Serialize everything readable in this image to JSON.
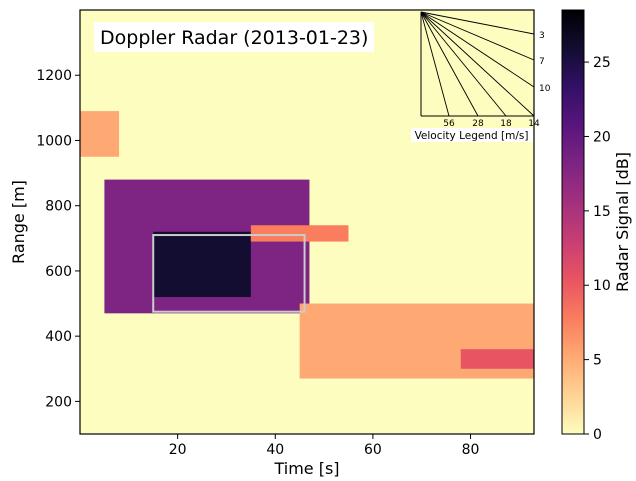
{
  "chart_data": {
    "type": "heatmap",
    "title": "Doppler Radar (2013-01-23)",
    "xlabel": "Time [s]",
    "ylabel": "Range [m]",
    "xlim": [
      0,
      93
    ],
    "ylim": [
      100,
      1400
    ],
    "x_ticks": [
      20,
      40,
      60,
      80
    ],
    "y_ticks": [
      200,
      400,
      600,
      800,
      1000,
      1200
    ],
    "colorbar": {
      "label": "Radar Signal [dB]",
      "colormap": "magma_r",
      "range": [
        0,
        28.5
      ],
      "ticks": [
        0,
        5,
        10,
        15,
        20,
        25
      ],
      "colors": [
        "#fcfdbf",
        "#fed395",
        "#fea973",
        "#fa7d5e",
        "#e95462",
        "#c83e73",
        "#a3307e",
        "#7e2482",
        "#59157e",
        "#331067",
        "#120d31",
        "#000004"
      ]
    },
    "background_level": 1,
    "signal_bands": [
      {
        "t0": 0,
        "t1": 8,
        "r_hi": 1090,
        "r_lo": 950,
        "level": 6
      },
      {
        "t0": 5,
        "t1": 47,
        "r_hi": 880,
        "r_lo": 470,
        "level": 19
      },
      {
        "t0": 15,
        "t1": 35,
        "r_hi": 720,
        "r_lo": 520,
        "level": 27
      },
      {
        "t0": 35,
        "t1": 55,
        "r_hi": 740,
        "r_lo": 690,
        "level": 8
      },
      {
        "t0": 45,
        "t1": 93,
        "r_hi": 500,
        "r_lo": 270,
        "level": 6
      },
      {
        "t0": 78,
        "t1": 93,
        "r_hi": 360,
        "r_lo": 300,
        "level": 10
      }
    ],
    "highlight_box": {
      "t0": 15,
      "t1": 46,
      "r0": 475,
      "r1": 710,
      "color": "#cccccc"
    },
    "velocity_legend": {
      "title": "Velocity Legend [m/s]",
      "side_labels": [
        "3",
        "7",
        "10",
        "14"
      ],
      "bottom_labels": [
        "56",
        "28",
        "18",
        "14"
      ]
    }
  }
}
